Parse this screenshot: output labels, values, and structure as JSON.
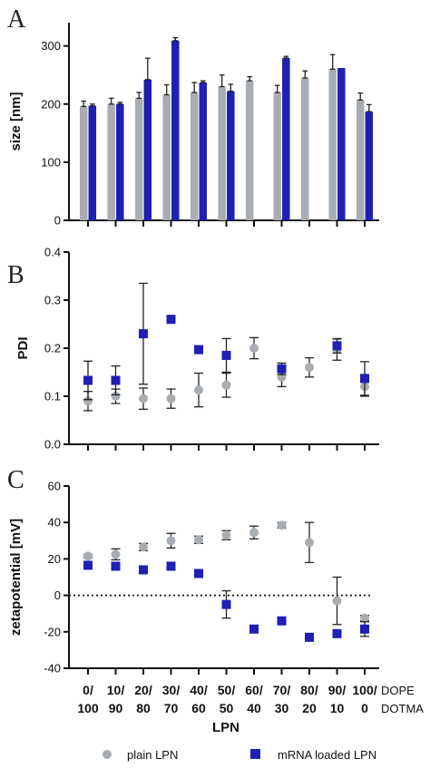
{
  "colors": {
    "plain": "#a8adb2",
    "loaded": "#1f1fb4"
  },
  "legend": {
    "plain": "plain LPN",
    "loaded": "mRNA loaded LPN"
  },
  "x_axis": {
    "title": "LPN",
    "top_labels": [
      "0/",
      "10/",
      "20/",
      "30/",
      "40/",
      "50/",
      "60/",
      "70/",
      "80/",
      "90/",
      "100/"
    ],
    "bottom_labels": [
      "100",
      "90",
      "80",
      "70",
      "60",
      "50",
      "40",
      "30",
      "20",
      "10",
      "0"
    ],
    "row1_name": "DOPE",
    "row2_name": "DOTMA"
  },
  "chart_data": [
    {
      "panel": "A",
      "type": "bar",
      "ylabel": "size [nm]",
      "ylim": [
        0,
        340
      ],
      "yticks": [
        0,
        100,
        200,
        300
      ],
      "categories": [
        "0/100",
        "10/90",
        "20/80",
        "30/70",
        "40/60",
        "50/50",
        "60/40",
        "70/30",
        "80/20",
        "90/10",
        "100/0"
      ],
      "series": [
        {
          "name": "plain LPN",
          "values": [
            196,
            200,
            210,
            216,
            220,
            230,
            240,
            220,
            245,
            260,
            207
          ],
          "err": [
            9,
            10,
            10,
            17,
            17,
            20,
            7,
            12,
            12,
            25,
            12
          ]
        },
        {
          "name": "mRNA loaded LPN",
          "values": [
            197,
            200,
            242,
            309,
            237,
            222,
            null,
            279,
            null,
            262,
            187
          ],
          "err": [
            3,
            3,
            37,
            5,
            3,
            12,
            null,
            3,
            null,
            null,
            12
          ]
        }
      ]
    },
    {
      "panel": "B",
      "type": "scatter",
      "ylabel": "PDI",
      "ylim": [
        0.0,
        0.4
      ],
      "yticks": [
        0.0,
        0.1,
        0.2,
        0.3,
        0.4
      ],
      "ytick_labels": [
        "0.0",
        "0.1",
        "0.2",
        "0.3",
        "0.4"
      ],
      "categories": [
        "0/100",
        "10/90",
        "20/80",
        "30/70",
        "40/60",
        "50/50",
        "60/40",
        "70/30",
        "80/20",
        "90/10",
        "100/0"
      ],
      "series": [
        {
          "name": "plain LPN",
          "marker": "circle",
          "values": [
            0.09,
            0.1,
            0.095,
            0.095,
            0.113,
            0.123,
            0.2,
            0.14,
            0.16,
            0.197,
            0.12
          ],
          "err": [
            0.02,
            0.015,
            0.022,
            0.02,
            0.035,
            0.025,
            0.022,
            0.02,
            0.02,
            0.022,
            0.02
          ]
        },
        {
          "name": "mRNA loaded LPN",
          "marker": "square",
          "values": [
            0.133,
            0.133,
            0.23,
            0.26,
            0.197,
            0.185,
            null,
            0.157,
            null,
            0.205,
            0.137
          ],
          "err": [
            0.04,
            0.03,
            0.105,
            0.0,
            0.0,
            0.035,
            null,
            0.012,
            null,
            0.015,
            0.035
          ]
        }
      ]
    },
    {
      "panel": "C",
      "type": "scatter",
      "ylabel": "zetapotential [mV]",
      "ylim": [
        -40,
        60
      ],
      "yticks": [
        -40,
        -20,
        0,
        20,
        40,
        60
      ],
      "reference_line": 0,
      "categories": [
        "0/100",
        "10/90",
        "20/80",
        "30/70",
        "40/60",
        "50/50",
        "60/40",
        "70/30",
        "80/20",
        "90/10",
        "100/0"
      ],
      "series": [
        {
          "name": "plain LPN",
          "marker": "circle",
          "values": [
            21.5,
            22.5,
            26.5,
            30,
            30.5,
            33,
            34.5,
            38.5,
            29,
            -3,
            -12.5
          ],
          "err": [
            1,
            3,
            2,
            4,
            2,
            2.5,
            3.5,
            1.5,
            11,
            13,
            1.5
          ]
        },
        {
          "name": "mRNA loaded LPN",
          "marker": "square",
          "values": [
            16.5,
            16,
            14,
            16,
            12,
            -5,
            -18.5,
            -14,
            -23,
            -21,
            -18.5
          ],
          "err": [
            0,
            0,
            0,
            0,
            0,
            7.5,
            0,
            0,
            0,
            0,
            4
          ]
        }
      ]
    }
  ]
}
